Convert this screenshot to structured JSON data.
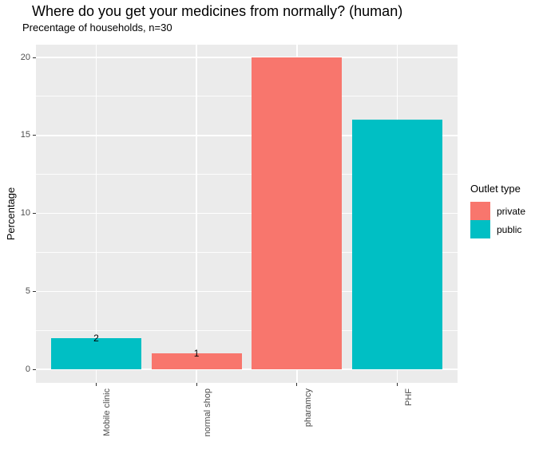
{
  "chart_data": {
    "type": "bar",
    "title": "Where do you get your medicines from normally? (human)",
    "subtitle": "Precentage of households, n=30",
    "categories": [
      "Mobile clinic",
      "normal shop",
      "pharamcy",
      "PHF"
    ],
    "values": [
      2,
      1,
      20,
      16
    ],
    "groups": [
      "public",
      "private",
      "private",
      "public"
    ],
    "bar_labels": [
      "2",
      "1",
      "",
      ""
    ],
    "xlabel": "",
    "ylabel": "Percentage",
    "ylim": [
      0,
      20
    ],
    "yticks": [
      0,
      5,
      10,
      15,
      20
    ],
    "ytick_labels": [
      "0",
      "5",
      "10",
      "15",
      "20"
    ],
    "grid": true,
    "legend": {
      "title": "Outlet type",
      "position": "right",
      "entries": [
        {
          "label": "private",
          "color": "#F8766D"
        },
        {
          "label": "public",
          "color": "#00BFC4"
        }
      ]
    },
    "colors": {
      "private": "#F8766D",
      "public": "#00BFC4",
      "panel_bg": "#EBEBEB",
      "gridline": "#FFFFFF",
      "axis_text": "#4D4D4D",
      "tick_mark": "#333333",
      "text": "#000000"
    }
  }
}
